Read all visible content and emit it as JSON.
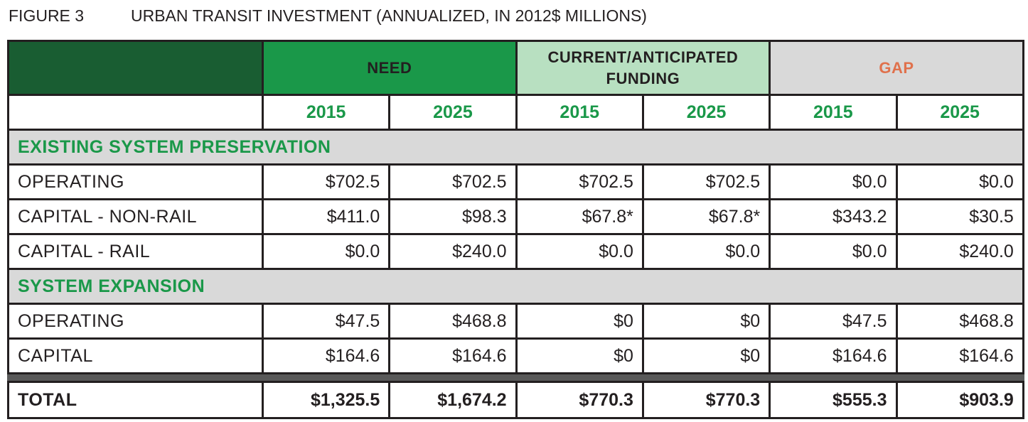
{
  "caption": {
    "figure_label": "FIGURE 3",
    "title": "URBAN TRANSIT INVESTMENT (ANNUALIZED, IN 2012$ MILLIONS)"
  },
  "colors": {
    "dark_green": "#195d32",
    "green": "#1a9849",
    "light_green": "#b8e0c1",
    "gray": "#d9d9d9",
    "gap_orange": "#e0714c",
    "dark_gray_bar": "#595959"
  },
  "table": {
    "groups": {
      "need": "NEED",
      "funding_line1": "CURRENT/ANTICIPATED",
      "funding_line2": "FUNDING",
      "gap": "GAP"
    },
    "years": [
      "2015",
      "2025",
      "2015",
      "2025",
      "2015",
      "2025"
    ],
    "sections": [
      {
        "title": "EXISTING SYSTEM PRESERVATION",
        "rows": [
          {
            "label": "OPERATING",
            "values": [
              "$702.5",
              "$702.5",
              "$702.5",
              "$702.5",
              "$0.0",
              "$0.0"
            ]
          },
          {
            "label": "CAPITAL - NON-RAIL",
            "values": [
              "$411.0",
              "$98.3",
              "$67.8*",
              "$67.8*",
              "$343.2",
              "$30.5"
            ]
          },
          {
            "label": "CAPITAL - RAIL",
            "values": [
              "$0.0",
              "$240.0",
              "$0.0",
              "$0.0",
              "$0.0",
              "$240.0"
            ]
          }
        ]
      },
      {
        "title": "SYSTEM EXPANSION",
        "rows": [
          {
            "label": "OPERATING",
            "values": [
              "$47.5",
              "$468.8",
              "$0",
              "$0",
              "$47.5",
              "$468.8"
            ]
          },
          {
            "label": "CAPITAL",
            "values": [
              "$164.6",
              "$164.6",
              "$0",
              "$0",
              "$164.6",
              "$164.6"
            ]
          }
        ]
      }
    ],
    "total": {
      "label": "TOTAL",
      "values": [
        "$1,325.5",
        "$1,674.2",
        "$770.3",
        "$770.3",
        "$555.3",
        "$903.9"
      ]
    }
  }
}
